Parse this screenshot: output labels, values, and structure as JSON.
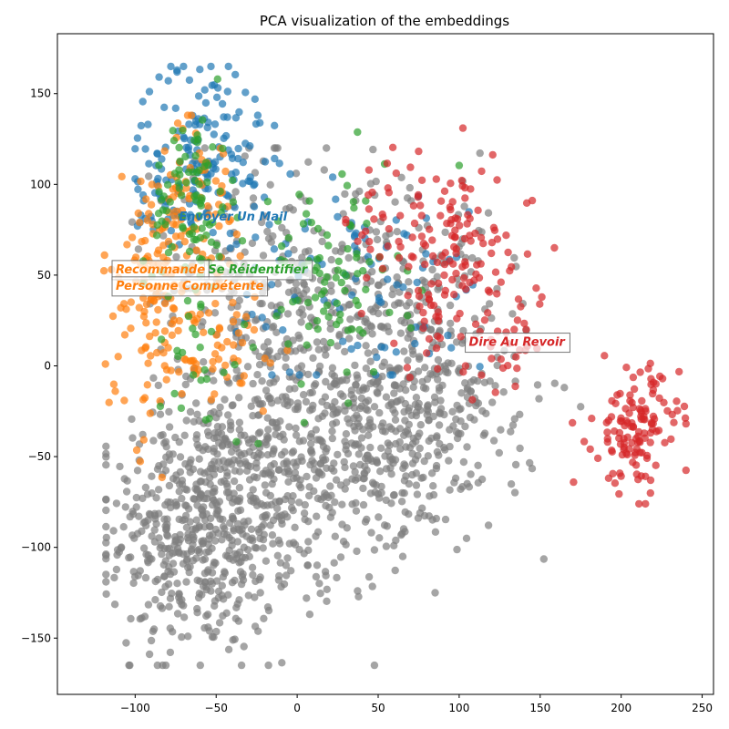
{
  "chart_data": {
    "type": "scatter",
    "title": "PCA visualization of the embeddings",
    "xlabel": "",
    "ylabel": "",
    "xlim": [
      -148,
      257
    ],
    "ylim": [
      -181,
      183
    ],
    "xticks": [
      -100,
      -50,
      0,
      50,
      100,
      150,
      200,
      250
    ],
    "yticks": [
      -150,
      -100,
      -50,
      0,
      50,
      100,
      150
    ],
    "grid": false,
    "legend": "none",
    "series": [
      {
        "color": "#7f7f7f",
        "clusters": [
          {
            "cx": -60,
            "cy": -90,
            "sx": 28,
            "sy": 35,
            "n": 520
          },
          {
            "cx": 0,
            "cy": -60,
            "sx": 35,
            "sy": 35,
            "n": 320
          },
          {
            "cx": 50,
            "cy": -20,
            "sx": 38,
            "sy": 40,
            "n": 360
          },
          {
            "cx": -20,
            "cy": 40,
            "sx": 35,
            "sy": 40,
            "n": 260
          },
          {
            "cx": 90,
            "cy": -20,
            "sx": 30,
            "sy": 30,
            "n": 160
          },
          {
            "cx": 70,
            "cy": 60,
            "sx": 25,
            "sy": 25,
            "n": 80
          }
        ],
        "extent": {
          "x": [
            -118,
            175
          ],
          "y": [
            -165,
            120
          ]
        }
      },
      {
        "color": "#1f77b4",
        "clusters": [
          {
            "cx": -55,
            "cy": 125,
            "sx": 20,
            "sy": 22,
            "n": 120
          },
          {
            "cx": -80,
            "cy": 90,
            "sx": 15,
            "sy": 20,
            "n": 50
          },
          {
            "cx": 20,
            "cy": 50,
            "sx": 30,
            "sy": 30,
            "n": 70
          },
          {
            "cx": 80,
            "cy": 30,
            "sx": 20,
            "sy": 25,
            "n": 25
          }
        ],
        "extent": {
          "x": [
            -100,
            140
          ],
          "y": [
            -5,
            165
          ]
        }
      },
      {
        "color": "#ff7f0e",
        "clusters": [
          {
            "cx": -85,
            "cy": 40,
            "sx": 18,
            "sy": 35,
            "n": 150
          },
          {
            "cx": -60,
            "cy": 95,
            "sx": 12,
            "sy": 20,
            "n": 60
          },
          {
            "cx": -40,
            "cy": 15,
            "sx": 20,
            "sy": 20,
            "n": 40
          }
        ],
        "extent": {
          "x": [
            -133,
            50
          ],
          "y": [
            -92,
            138
          ]
        }
      },
      {
        "color": "#2ca02c",
        "clusters": [
          {
            "cx": -65,
            "cy": 90,
            "sx": 12,
            "sy": 25,
            "n": 90
          },
          {
            "cx": 20,
            "cy": 45,
            "sx": 25,
            "sy": 30,
            "n": 90
          },
          {
            "cx": -60,
            "cy": 10,
            "sx": 20,
            "sy": 30,
            "n": 30
          }
        ],
        "extent": {
          "x": [
            -95,
            100
          ],
          "y": [
            -65,
            158
          ]
        }
      },
      {
        "color": "#d62728",
        "clusters": [
          {
            "cx": 210,
            "cy": -35,
            "sx": 13,
            "sy": 17,
            "n": 130
          },
          {
            "cx": 95,
            "cy": 55,
            "sx": 25,
            "sy": 30,
            "n": 140
          },
          {
            "cx": 60,
            "cy": 80,
            "sx": 15,
            "sy": 20,
            "n": 30
          },
          {
            "cx": 130,
            "cy": 20,
            "sx": 15,
            "sy": 20,
            "n": 25
          }
        ],
        "extent": {
          "x": [
            30,
            240
          ],
          "y": [
            -76,
            131
          ]
        }
      }
    ],
    "annotations": [
      {
        "text": "Envoyer Un Mail",
        "x": -73,
        "y": 80,
        "color": "#1f77b4",
        "box": false
      },
      {
        "text": "Se Réidentifier",
        "x": -55,
        "y": 51,
        "color": "#2ca02c",
        "box": true
      },
      {
        "text": "Recommande",
        "x": -112,
        "y": 51,
        "color": "#ff7f0e",
        "box": true
      },
      {
        "text": "Personne Compétente",
        "x": -112,
        "y": 42,
        "color": "#ff7f0e",
        "box": true
      },
      {
        "text": "Dire Au Revoir",
        "x": 106,
        "y": 11,
        "color": "#d62728",
        "box": true
      }
    ]
  }
}
